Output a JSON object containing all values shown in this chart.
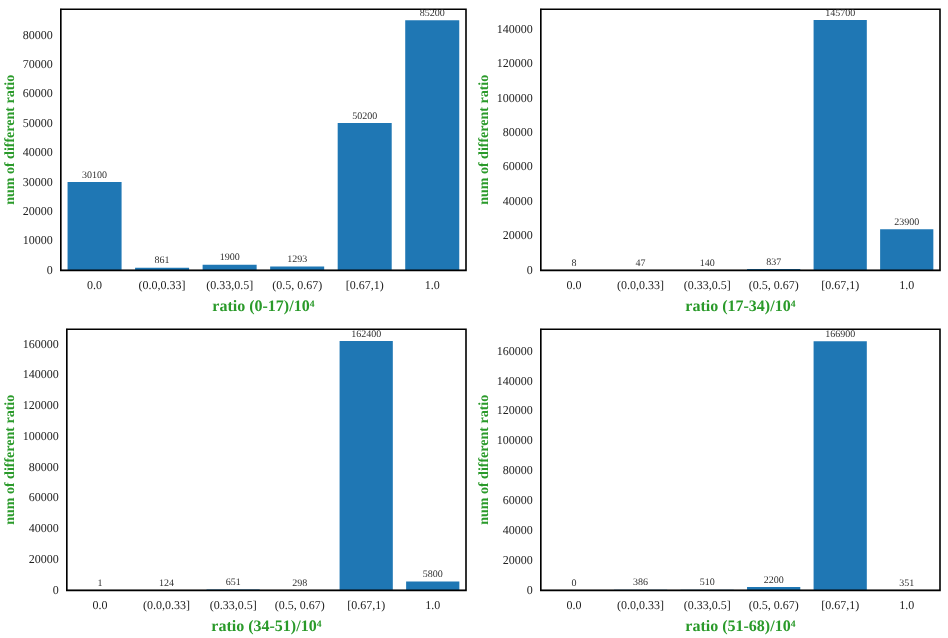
{
  "chart_data": [
    {
      "type": "bar",
      "xlabel": "ratio (0-17)/10⁴",
      "ylabel": "num of different ratio",
      "categories": [
        "0.0",
        "(0.0,0.33]",
        "(0.33,0.5]",
        "(0.5, 0.67)",
        "[0.67,1)",
        "1.0"
      ],
      "values": [
        30100,
        861,
        1900,
        1293,
        50200,
        85200
      ],
      "color": "#1f77b4",
      "ylim": [
        0,
        89000
      ],
      "yticks": [
        0,
        10000,
        20000,
        30000,
        40000,
        50000,
        60000,
        70000,
        80000
      ],
      "data_labels": true,
      "grid": false,
      "legend": false
    },
    {
      "type": "bar",
      "xlabel": "ratio (17-34)/10⁴",
      "ylabel": "num of different ratio",
      "categories": [
        "0.0",
        "(0.0,0.33]",
        "(0.33,0.5]",
        "(0.5, 0.67)",
        "[0.67,1)",
        "1.0"
      ],
      "values": [
        8,
        47,
        140,
        837,
        145700,
        23900
      ],
      "color": "#1f77b4",
      "ylim": [
        0,
        152000
      ],
      "yticks": [
        0,
        20000,
        40000,
        60000,
        80000,
        100000,
        120000,
        140000
      ],
      "data_labels": true,
      "grid": false,
      "legend": false
    },
    {
      "type": "bar",
      "xlabel": "ratio (34-51)/10⁴",
      "ylabel": "num of different ratio",
      "categories": [
        "0.0",
        "(0.0,0.33]",
        "(0.33,0.5]",
        "(0.5, 0.67)",
        "[0.67,1)",
        "1.0"
      ],
      "values": [
        1,
        124,
        651,
        298,
        162400,
        5800
      ],
      "color": "#1f77b4",
      "ylim": [
        0,
        170000
      ],
      "yticks": [
        0,
        20000,
        40000,
        60000,
        80000,
        100000,
        120000,
        140000,
        160000
      ],
      "data_labels": true,
      "grid": false,
      "legend": false
    },
    {
      "type": "bar",
      "xlabel": "ratio (51-68)/10⁴",
      "ylabel": "num of different ratio",
      "categories": [
        "0.0",
        "(0.0,0.33]",
        "(0.33,0.5]",
        "(0.5, 0.67)",
        "[0.67,1)",
        "1.0"
      ],
      "values": [
        0,
        386,
        510,
        2200,
        166900,
        351
      ],
      "color": "#1f77b4",
      "ylim": [
        0,
        175000
      ],
      "yticks": [
        0,
        20000,
        40000,
        60000,
        80000,
        100000,
        120000,
        140000,
        160000
      ],
      "data_labels": true,
      "grid": false,
      "legend": false
    }
  ]
}
